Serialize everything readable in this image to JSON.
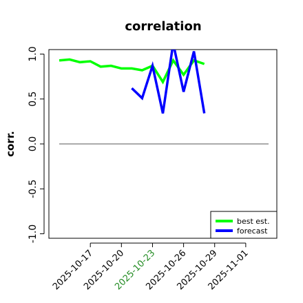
{
  "chart_data": {
    "type": "line",
    "title": "correlation",
    "xlabel": "",
    "ylabel": "corr.",
    "ylim": [
      -1.05,
      1.05
    ],
    "y_ticks": [
      {
        "value": -1.0,
        "label": "-1.0"
      },
      {
        "value": -0.5,
        "label": "-0.5"
      },
      {
        "value": 0.0,
        "label": "0.0"
      },
      {
        "value": 0.5,
        "label": "0.5"
      },
      {
        "value": 1.0,
        "label": "1.0"
      }
    ],
    "x_range": [
      "2025-10-13",
      "2025-11-04"
    ],
    "x_ticks": [
      {
        "date": "2025-10-17",
        "label": "2025-10-17",
        "color": "#000000"
      },
      {
        "date": "2025-10-20",
        "label": "2025-10-20",
        "color": "#000000"
      },
      {
        "date": "2025-10-23",
        "label": "2025-10-23",
        "color": "#228B22"
      },
      {
        "date": "2025-10-26",
        "label": "2025-10-26",
        "color": "#000000"
      },
      {
        "date": "2025-10-29",
        "label": "2025-10-29",
        "color": "#000000"
      },
      {
        "date": "2025-11-01",
        "label": "2025-11-01",
        "color": "#000000"
      }
    ],
    "reference_line": 0.0,
    "grid": false,
    "legend_position": "bottom-right",
    "series": [
      {
        "name": "best est.",
        "color": "#00ff00",
        "points": [
          [
            "2025-10-14",
            0.93
          ],
          [
            "2025-10-15",
            0.94
          ],
          [
            "2025-10-16",
            0.91
          ],
          [
            "2025-10-17",
            0.92
          ],
          [
            "2025-10-18",
            0.86
          ],
          [
            "2025-10-19",
            0.87
          ],
          [
            "2025-10-20",
            0.84
          ],
          [
            "2025-10-21",
            0.84
          ],
          [
            "2025-10-22",
            0.82
          ],
          [
            "2025-10-23",
            0.87
          ],
          [
            "2025-10-24",
            0.69
          ],
          [
            "2025-10-25",
            0.93
          ],
          [
            "2025-10-26",
            0.77
          ],
          [
            "2025-10-27",
            0.93
          ],
          [
            "2025-10-28",
            0.89
          ]
        ]
      },
      {
        "name": "forecast",
        "color": "#0000ff",
        "points": [
          [
            "2025-10-21",
            0.62
          ],
          [
            "2025-10-22",
            0.51
          ],
          [
            "2025-10-23",
            0.87
          ],
          [
            "2025-10-24",
            0.34
          ],
          [
            "2025-10-25",
            1.12
          ],
          [
            "2025-10-26",
            0.58
          ],
          [
            "2025-10-27",
            1.03
          ],
          [
            "2025-10-28",
            0.34
          ]
        ]
      }
    ]
  }
}
